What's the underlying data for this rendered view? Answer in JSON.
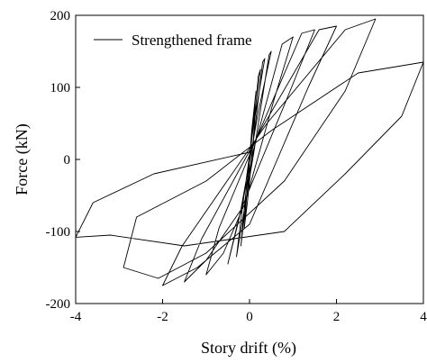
{
  "chart_data": {
    "type": "line",
    "title": "",
    "xlabel": "Story drift (%)",
    "ylabel": "Force (kN)",
    "xlim": [
      -4,
      4
    ],
    "ylim": [
      -200,
      200
    ],
    "xticks": [
      -4,
      -2,
      0,
      2,
      4
    ],
    "yticks": [
      -200,
      -100,
      0,
      100,
      200
    ],
    "xtick_labels": [
      "-4",
      "-2",
      "0",
      "2",
      "4"
    ],
    "ytick_labels": [
      "-200",
      "-100",
      "0",
      "100",
      "200"
    ],
    "grid": false,
    "legend_position": "top-left",
    "series": [
      {
        "name": "Strengthened frame",
        "color": "#000000",
        "points": [
          [
            0,
            0
          ],
          [
            0.1,
            60
          ],
          [
            0.15,
            95
          ],
          [
            0.05,
            40
          ],
          [
            -0.05,
            -40
          ],
          [
            -0.12,
            -95
          ],
          [
            -0.05,
            -60
          ],
          [
            0.05,
            0
          ],
          [
            0.2,
            115
          ],
          [
            0.25,
            125
          ],
          [
            0.1,
            55
          ],
          [
            -0.1,
            -55
          ],
          [
            -0.2,
            -120
          ],
          [
            -0.1,
            -70
          ],
          [
            0.05,
            5
          ],
          [
            0.3,
            135
          ],
          [
            0.35,
            140
          ],
          [
            0.1,
            50
          ],
          [
            -0.15,
            -60
          ],
          [
            -0.3,
            -135
          ],
          [
            -0.15,
            -80
          ],
          [
            0.1,
            10
          ],
          [
            0.45,
            145
          ],
          [
            0.5,
            150
          ],
          [
            0.2,
            65
          ],
          [
            -0.2,
            -70
          ],
          [
            -0.5,
            -145
          ],
          [
            -0.25,
            -85
          ],
          [
            0.1,
            15
          ],
          [
            0.75,
            160
          ],
          [
            1.0,
            170
          ],
          [
            0.55,
            80
          ],
          [
            -0.1,
            -60
          ],
          [
            -0.6,
            -130
          ],
          [
            -1.0,
            -160
          ],
          [
            -0.7,
            -95
          ],
          [
            0.2,
            35
          ],
          [
            1.2,
            175
          ],
          [
            1.5,
            180
          ],
          [
            0.9,
            90
          ],
          [
            -0.2,
            -70
          ],
          [
            -1.0,
            -140
          ],
          [
            -1.5,
            -170
          ],
          [
            -1.1,
            -110
          ],
          [
            0.3,
            45
          ],
          [
            1.6,
            180
          ],
          [
            2.0,
            185
          ],
          [
            1.35,
            100
          ],
          [
            0.0,
            -90
          ],
          [
            -1.2,
            -150
          ],
          [
            -2.0,
            -175
          ],
          [
            -1.55,
            -120
          ],
          [
            0.4,
            50
          ],
          [
            2.2,
            180
          ],
          [
            2.9,
            195
          ],
          [
            2.2,
            95
          ],
          [
            0.8,
            -30
          ],
          [
            -1.0,
            -130
          ],
          [
            -2.1,
            -165
          ],
          [
            -2.9,
            -150
          ],
          [
            -2.6,
            -80
          ],
          [
            -1.0,
            -30
          ],
          [
            0.5,
            40
          ],
          [
            2.5,
            120
          ],
          [
            4.0,
            135
          ],
          [
            3.5,
            60
          ],
          [
            2.2,
            -20
          ],
          [
            0.8,
            -100
          ],
          [
            -1.5,
            -120
          ],
          [
            -3.2,
            -105
          ],
          [
            -4.0,
            -108
          ],
          [
            -3.6,
            -60
          ],
          [
            -2.2,
            -20
          ],
          [
            0.0,
            10
          ]
        ]
      }
    ]
  }
}
